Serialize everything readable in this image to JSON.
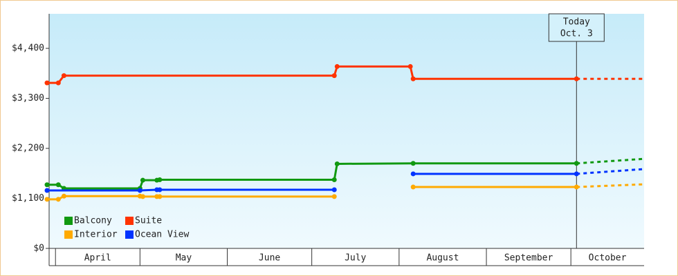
{
  "chart_data": {
    "type": "step-line",
    "ylim": [
      0,
      5160
    ],
    "yticks": [
      {
        "value": 0,
        "label": "$0"
      },
      {
        "value": 1100,
        "label": "$1,100"
      },
      {
        "value": 2200,
        "label": "$2,200"
      },
      {
        "value": 3300,
        "label": "$3,300"
      },
      {
        "value": 4400,
        "label": "$4,400"
      }
    ],
    "xlim": [
      -3,
      209
    ],
    "xticks": [
      0,
      30,
      61,
      91,
      122,
      153,
      183
    ],
    "months": [
      "April",
      "May",
      "June",
      "July",
      "August",
      "September",
      "October"
    ],
    "today": {
      "x": 185,
      "label": "Today",
      "date": "Oct. 3"
    },
    "legend": "lower left",
    "series": [
      {
        "name": "Balcony",
        "color": "#119911",
        "x": [
          -3,
          1,
          3,
          30,
          31,
          36,
          37,
          99,
          100,
          127,
          185
        ],
        "values": [
          1400,
          1400,
          1320,
          1320,
          1500,
          1500,
          1510,
          1510,
          1860,
          1870,
          1870
        ],
        "forecast_x": [
          185,
          209
        ],
        "forecast_values": [
          1870,
          1970
        ]
      },
      {
        "name": "Suite",
        "color": "#ff3300",
        "x": [
          -3,
          1,
          3,
          99,
          100,
          126,
          127,
          185
        ],
        "values": [
          3640,
          3640,
          3800,
          3800,
          4000,
          4000,
          3730,
          3730
        ],
        "forecast_x": [
          185,
          209
        ],
        "forecast_values": [
          3730,
          3730
        ]
      },
      {
        "name": "Interior",
        "color": "#ffaa00",
        "x": [
          -3,
          1,
          3,
          30,
          31,
          36,
          37,
          99,
          110,
          127,
          185
        ],
        "values": [
          1080,
          1080,
          1150,
          1150,
          1140,
          1140,
          1140,
          1140,
          null,
          1350,
          1350
        ],
        "forecast_x": [
          185,
          209
        ],
        "forecast_values": [
          1350,
          1410
        ]
      },
      {
        "name": "Ocean View",
        "color": "#0033ff",
        "x": [
          -3,
          30,
          36,
          37,
          99,
          110,
          127,
          185
        ],
        "values": [
          1275,
          1275,
          1290,
          1290,
          1290,
          null,
          1640,
          1640
        ],
        "forecast_x": [
          185,
          209
        ],
        "forecast_values": [
          1640,
          1745
        ]
      }
    ]
  }
}
